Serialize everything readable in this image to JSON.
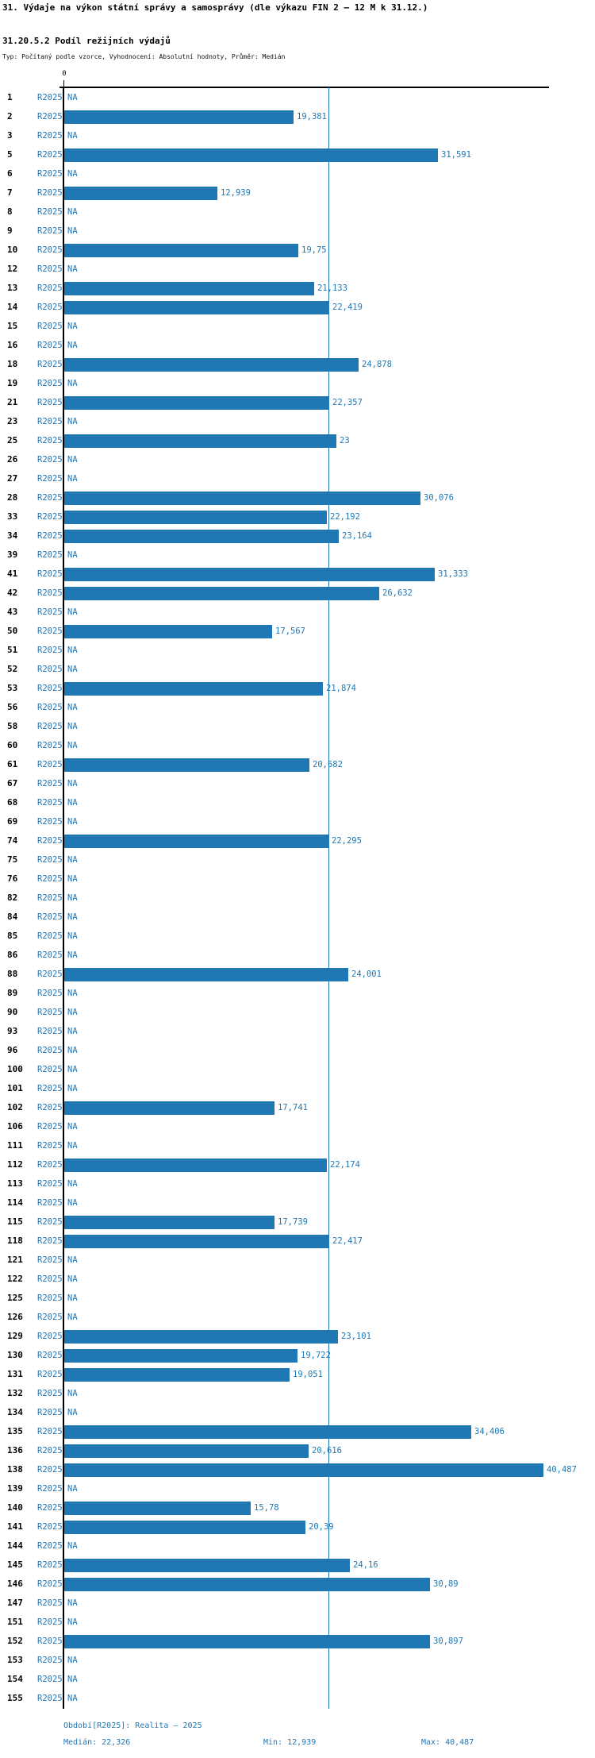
{
  "header": {
    "title": "31. Výdaje na výkon státní správy a samosprávy (dle výkazu FIN 2 – 12 M k 31.12.)",
    "subtitle": "31.20.5.2 Podíl režijních výdajů",
    "meta": "Typ: Počítaný podle vzorce, Vyhodnocení: Absolutní hodnoty, Průměr: Medián"
  },
  "axis": {
    "zero_label": "0"
  },
  "footer": {
    "period_line": "Období[R2025]: Realita – 2025",
    "median_label": "Medián: 22,326",
    "min_label": "Min: 12,939",
    "max_label": "Max: 40,487"
  },
  "colors": {
    "bar": "#1f77b4",
    "blue_text": "#1f77b4",
    "axis": "#000000"
  },
  "chart_data": {
    "type": "bar",
    "orientation": "horizontal",
    "title": "31.20.5.2 Podíl režijních výdajů",
    "series_name": "R2025",
    "na_text": "NA",
    "median": 22.326,
    "min": 12.939,
    "max": 40.487,
    "xlim": [
      0,
      40.9
    ],
    "legend_position": "none",
    "grid": false,
    "rows": [
      {
        "id": "1",
        "value": null,
        "label": "NA"
      },
      {
        "id": "2",
        "value": 19.381,
        "label": "19,381"
      },
      {
        "id": "3",
        "value": null,
        "label": "NA"
      },
      {
        "id": "5",
        "value": 31.591,
        "label": "31,591"
      },
      {
        "id": "6",
        "value": null,
        "label": "NA"
      },
      {
        "id": "7",
        "value": 12.939,
        "label": "12,939"
      },
      {
        "id": "8",
        "value": null,
        "label": "NA"
      },
      {
        "id": "9",
        "value": null,
        "label": "NA"
      },
      {
        "id": "10",
        "value": 19.75,
        "label": "19,75"
      },
      {
        "id": "12",
        "value": null,
        "label": "NA"
      },
      {
        "id": "13",
        "value": 21.133,
        "label": "21,133"
      },
      {
        "id": "14",
        "value": 22.419,
        "label": "22,419"
      },
      {
        "id": "15",
        "value": null,
        "label": "NA"
      },
      {
        "id": "16",
        "value": null,
        "label": "NA"
      },
      {
        "id": "18",
        "value": 24.878,
        "label": "24,878"
      },
      {
        "id": "19",
        "value": null,
        "label": "NA"
      },
      {
        "id": "21",
        "value": 22.357,
        "label": "22,357"
      },
      {
        "id": "23",
        "value": null,
        "label": "NA"
      },
      {
        "id": "25",
        "value": 23,
        "label": "23"
      },
      {
        "id": "26",
        "value": null,
        "label": "NA"
      },
      {
        "id": "27",
        "value": null,
        "label": "NA"
      },
      {
        "id": "28",
        "value": 30.076,
        "label": "30,076"
      },
      {
        "id": "33",
        "value": 22.192,
        "label": "22,192"
      },
      {
        "id": "34",
        "value": 23.164,
        "label": "23,164"
      },
      {
        "id": "39",
        "value": null,
        "label": "NA"
      },
      {
        "id": "41",
        "value": 31.333,
        "label": "31,333"
      },
      {
        "id": "42",
        "value": 26.632,
        "label": "26,632"
      },
      {
        "id": "43",
        "value": null,
        "label": "NA"
      },
      {
        "id": "50",
        "value": 17.567,
        "label": "17,567"
      },
      {
        "id": "51",
        "value": null,
        "label": "NA"
      },
      {
        "id": "52",
        "value": null,
        "label": "NA"
      },
      {
        "id": "53",
        "value": 21.874,
        "label": "21,874"
      },
      {
        "id": "56",
        "value": null,
        "label": "NA"
      },
      {
        "id": "58",
        "value": null,
        "label": "NA"
      },
      {
        "id": "60",
        "value": null,
        "label": "NA"
      },
      {
        "id": "61",
        "value": 20.682,
        "label": "20,682"
      },
      {
        "id": "67",
        "value": null,
        "label": "NA"
      },
      {
        "id": "68",
        "value": null,
        "label": "NA"
      },
      {
        "id": "69",
        "value": null,
        "label": "NA"
      },
      {
        "id": "74",
        "value": 22.295,
        "label": "22,295"
      },
      {
        "id": "75",
        "value": null,
        "label": "NA"
      },
      {
        "id": "76",
        "value": null,
        "label": "NA"
      },
      {
        "id": "82",
        "value": null,
        "label": "NA"
      },
      {
        "id": "84",
        "value": null,
        "label": "NA"
      },
      {
        "id": "85",
        "value": null,
        "label": "NA"
      },
      {
        "id": "86",
        "value": null,
        "label": "NA"
      },
      {
        "id": "88",
        "value": 24.001,
        "label": "24,001"
      },
      {
        "id": "89",
        "value": null,
        "label": "NA"
      },
      {
        "id": "90",
        "value": null,
        "label": "NA"
      },
      {
        "id": "93",
        "value": null,
        "label": "NA"
      },
      {
        "id": "96",
        "value": null,
        "label": "NA"
      },
      {
        "id": "100",
        "value": null,
        "label": "NA"
      },
      {
        "id": "101",
        "value": null,
        "label": "NA"
      },
      {
        "id": "102",
        "value": 17.741,
        "label": "17,741"
      },
      {
        "id": "106",
        "value": null,
        "label": "NA"
      },
      {
        "id": "111",
        "value": null,
        "label": "NA"
      },
      {
        "id": "112",
        "value": 22.174,
        "label": "22,174"
      },
      {
        "id": "113",
        "value": null,
        "label": "NA"
      },
      {
        "id": "114",
        "value": null,
        "label": "NA"
      },
      {
        "id": "115",
        "value": 17.739,
        "label": "17,739"
      },
      {
        "id": "118",
        "value": 22.417,
        "label": "22,417"
      },
      {
        "id": "121",
        "value": null,
        "label": "NA"
      },
      {
        "id": "122",
        "value": null,
        "label": "NA"
      },
      {
        "id": "125",
        "value": null,
        "label": "NA"
      },
      {
        "id": "126",
        "value": null,
        "label": "NA"
      },
      {
        "id": "129",
        "value": 23.101,
        "label": "23,101"
      },
      {
        "id": "130",
        "value": 19.722,
        "label": "19,722"
      },
      {
        "id": "131",
        "value": 19.051,
        "label": "19,051"
      },
      {
        "id": "132",
        "value": null,
        "label": "NA"
      },
      {
        "id": "134",
        "value": null,
        "label": "NA"
      },
      {
        "id": "135",
        "value": 34.406,
        "label": "34,406"
      },
      {
        "id": "136",
        "value": 20.616,
        "label": "20,616"
      },
      {
        "id": "138",
        "value": 40.487,
        "label": "40,487"
      },
      {
        "id": "139",
        "value": null,
        "label": "NA"
      },
      {
        "id": "140",
        "value": 15.78,
        "label": "15,78"
      },
      {
        "id": "141",
        "value": 20.39,
        "label": "20,39"
      },
      {
        "id": "144",
        "value": null,
        "label": "NA"
      },
      {
        "id": "145",
        "value": 24.16,
        "label": "24,16"
      },
      {
        "id": "146",
        "value": 30.89,
        "label": "30,89"
      },
      {
        "id": "147",
        "value": null,
        "label": "NA"
      },
      {
        "id": "151",
        "value": null,
        "label": "NA"
      },
      {
        "id": "152",
        "value": 30.897,
        "label": "30,897"
      },
      {
        "id": "153",
        "value": null,
        "label": "NA"
      },
      {
        "id": "154",
        "value": null,
        "label": "NA"
      },
      {
        "id": "155",
        "value": null,
        "label": "NA"
      }
    ]
  }
}
